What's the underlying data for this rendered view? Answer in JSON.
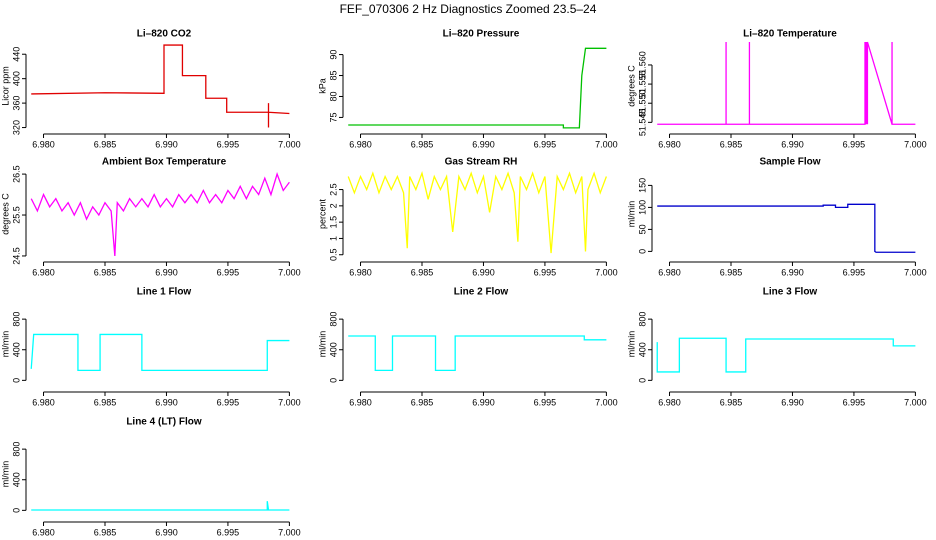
{
  "title": "FEF_070306  2 Hz Diagnostics Zoomed 23.5–24",
  "chart_data": [
    {
      "type": "line",
      "title": "Li–820 CO2",
      "ylabel": "Licor ppm",
      "color": "#e00000",
      "xlim": [
        6.9789,
        7.0007
      ],
      "xticks": [
        {
          "value": 6.98,
          "label": "6.980"
        },
        6.985,
        {
          "value": 6.99,
          "label": "6.990"
        },
        6.995,
        {
          "value": 7,
          "label": "7.000"
        }
      ],
      "ylim": [
        316,
        460
      ],
      "yticks": [
        320,
        360,
        400,
        440
      ],
      "x": [
        6.979,
        6.985,
        6.9898,
        6.9898,
        6.9913,
        6.9913,
        6.9932,
        6.9932,
        6.9949,
        6.9949,
        6.9983,
        6.9983,
        6.9983,
        6.9983,
        7.0
      ],
      "values": [
        375,
        377,
        376,
        455,
        455,
        405,
        405,
        368,
        368,
        345,
        345,
        320,
        360,
        345,
        343
      ]
    },
    {
      "type": "line",
      "title": "Li–820 Pressure",
      "ylabel": "kPa",
      "color": "#00c000",
      "xlim": [
        6.9789,
        7.0007
      ],
      "xticks": [
        {
          "value": 6.98,
          "label": "6.980"
        },
        6.985,
        {
          "value": 6.99,
          "label": "6.990"
        },
        6.995,
        {
          "value": 7,
          "label": "7.000"
        }
      ],
      "ylim": [
        72,
        93
      ],
      "yticks": [
        75,
        80,
        85,
        90
      ],
      "x": [
        6.979,
        6.9965,
        6.9965,
        6.9978,
        6.998,
        6.9983,
        7.0
      ],
      "values": [
        73.2,
        73.2,
        72.5,
        72.5,
        85,
        91.5,
        91.5
      ]
    },
    {
      "type": "line",
      "title": "Li–820 Temperature",
      "ylabel": "degrees C",
      "color": "#ff00ff",
      "xlim": [
        6.9789,
        7.0007
      ],
      "xticks": [
        {
          "value": 6.98,
          "label": "6.980"
        },
        6.985,
        {
          "value": 6.99,
          "label": "6.990"
        },
        6.995,
        {
          "value": 7,
          "label": "7.000"
        }
      ],
      "ylim": [
        51.543,
        51.566
      ],
      "yticks": [
        51.545,
        {
          "value": 51.55,
          "label": "51.550"
        },
        51.555,
        {
          "value": 51.56,
          "label": "51.560"
        }
      ],
      "x": [
        6.979,
        6.9846,
        6.9846,
        6.9846,
        6.9865,
        6.9865,
        6.9865,
        6.9959,
        6.9959,
        6.996,
        6.996,
        6.9961,
        6.9961,
        6.9981,
        6.9981,
        6.9981,
        7.0
      ],
      "values": [
        51.5445,
        51.5445,
        51.566,
        51.5445,
        51.5445,
        51.566,
        51.5445,
        51.5445,
        51.566,
        51.5445,
        51.566,
        51.5445,
        51.566,
        51.5445,
        51.566,
        51.5445,
        51.5445
      ]
    },
    {
      "type": "line",
      "title": "Ambient Box Temperature",
      "ylabel": "degrees C",
      "color": "#ff00ff",
      "xlim": [
        6.9789,
        7.0007
      ],
      "xticks": [
        {
          "value": 6.98,
          "label": "6.980"
        },
        6.985,
        {
          "value": 6.99,
          "label": "6.990"
        },
        6.995,
        {
          "value": 7,
          "label": "7.000"
        }
      ],
      "ylim": [
        24.45,
        26.6
      ],
      "yticks": [
        24.5,
        25.5,
        26.5
      ],
      "x": [
        6.979,
        6.9795,
        6.98,
        6.9805,
        6.981,
        6.9815,
        6.982,
        6.9825,
        6.983,
        6.9835,
        6.984,
        6.9845,
        6.985,
        6.9855,
        6.9858,
        6.986,
        6.9865,
        6.987,
        6.9875,
        6.988,
        6.9885,
        6.989,
        6.9895,
        6.99,
        6.9905,
        6.991,
        6.9915,
        6.992,
        6.9925,
        6.993,
        6.9935,
        6.994,
        6.9945,
        6.995,
        6.9955,
        6.996,
        6.9965,
        6.997,
        6.9975,
        6.998,
        6.9985,
        6.999,
        6.9995,
        7.0
      ],
      "values": [
        25.9,
        25.6,
        26.0,
        25.7,
        25.9,
        25.6,
        25.8,
        25.5,
        25.8,
        25.4,
        25.7,
        25.5,
        25.8,
        25.6,
        24.5,
        25.8,
        25.6,
        25.9,
        25.7,
        25.9,
        25.7,
        26.0,
        25.7,
        25.9,
        25.7,
        26.0,
        25.8,
        26.0,
        25.8,
        26.1,
        25.8,
        26.0,
        25.8,
        26.1,
        25.9,
        26.2,
        25.9,
        26.2,
        26.0,
        26.4,
        26.0,
        26.5,
        26.1,
        26.3
      ]
    },
    {
      "type": "line",
      "title": "Gas Stream RH",
      "ylabel": "percent",
      "color": "#ffff00",
      "xlim": [
        6.9789,
        7.0007
      ],
      "xticks": [
        {
          "value": 6.98,
          "label": "6.980"
        },
        6.985,
        {
          "value": 6.99,
          "label": "6.990"
        },
        6.995,
        {
          "value": 7,
          "label": "7.000"
        }
      ],
      "ylim": [
        0.4,
        3.1
      ],
      "yticks": [
        0.5,
        1,
        1.5,
        2,
        2.5
      ],
      "x": [
        6.979,
        6.9795,
        6.98,
        6.9805,
        6.981,
        6.9815,
        6.982,
        6.9825,
        6.983,
        6.9835,
        6.9838,
        6.984,
        6.9845,
        6.985,
        6.9855,
        6.986,
        6.9865,
        6.987,
        6.9875,
        6.988,
        6.9885,
        6.989,
        6.9895,
        6.99,
        6.9905,
        6.991,
        6.9915,
        6.992,
        6.9925,
        6.9928,
        6.993,
        6.9935,
        6.994,
        6.9945,
        6.995,
        6.9955,
        6.996,
        6.9965,
        6.997,
        6.9975,
        6.998,
        6.9983,
        6.9985,
        6.999,
        6.9995,
        7.0
      ],
      "values": [
        2.9,
        2.4,
        2.9,
        2.5,
        3.0,
        2.4,
        2.9,
        2.5,
        2.9,
        2.4,
        0.7,
        2.9,
        2.5,
        3.0,
        2.2,
        2.9,
        2.5,
        2.9,
        1.2,
        2.9,
        2.5,
        3.0,
        2.4,
        2.9,
        1.8,
        2.9,
        2.5,
        3.0,
        2.4,
        0.9,
        2.9,
        2.5,
        3.0,
        2.4,
        2.9,
        0.55,
        2.9,
        2.5,
        3.0,
        2.4,
        2.9,
        0.6,
        2.5,
        3.0,
        2.4,
        2.9
      ]
    },
    {
      "type": "line",
      "title": "Sample Flow",
      "ylabel": "ml/min",
      "color": "#0000cc",
      "xlim": [
        6.9789,
        7.0007
      ],
      "xticks": [
        {
          "value": 6.98,
          "label": "6.980"
        },
        6.985,
        {
          "value": 6.99,
          "label": "6.990"
        },
        6.995,
        {
          "value": 7,
          "label": "7.000"
        }
      ],
      "ylim": [
        -15,
        185
      ],
      "yticks": [
        0,
        50,
        100,
        150
      ],
      "x": [
        6.979,
        6.9925,
        6.9925,
        6.9935,
        6.9935,
        6.9945,
        6.9945,
        6.9967,
        6.9967,
        6.9968,
        7.0
      ],
      "values": [
        103,
        103,
        105,
        105,
        100,
        100,
        107,
        107,
        0,
        -2,
        -2
      ]
    },
    {
      "type": "line",
      "title": "Line 1 Flow",
      "ylabel": "ml/min",
      "color": "#00ffff",
      "xlim": [
        6.9789,
        7.0007
      ],
      "xticks": [
        {
          "value": 6.98,
          "label": "6.980"
        },
        6.985,
        {
          "value": 6.99,
          "label": "6.990"
        },
        6.995,
        {
          "value": 7,
          "label": "7.000"
        }
      ],
      "ylim": [
        -100,
        1050
      ],
      "yticks": [
        0,
        400,
        800
      ],
      "x": [
        6.979,
        6.9792,
        6.9828,
        6.9828,
        6.9846,
        6.9846,
        6.988,
        6.988,
        6.9982,
        6.9982,
        7.0
      ],
      "values": [
        150,
        600,
        600,
        130,
        130,
        600,
        600,
        130,
        130,
        520,
        520
      ]
    },
    {
      "type": "line",
      "title": "Line 2 Flow",
      "ylabel": "ml/min",
      "color": "#00ffff",
      "xlim": [
        6.9789,
        7.0007
      ],
      "xticks": [
        {
          "value": 6.98,
          "label": "6.980"
        },
        6.985,
        {
          "value": 6.99,
          "label": "6.990"
        },
        6.995,
        {
          "value": 7,
          "label": "7.000"
        }
      ],
      "ylim": [
        -100,
        1050
      ],
      "yticks": [
        0,
        400,
        800
      ],
      "x": [
        6.979,
        6.9812,
        6.9812,
        6.9826,
        6.9826,
        6.9861,
        6.9861,
        6.9877,
        6.9877,
        6.9982,
        6.9982,
        7.0
      ],
      "values": [
        580,
        580,
        130,
        130,
        580,
        580,
        130,
        130,
        580,
        580,
        530,
        530
      ]
    },
    {
      "type": "line",
      "title": "Line 3 Flow",
      "ylabel": "ml/min",
      "color": "#00ffff",
      "xlim": [
        6.9789,
        7.0007
      ],
      "xticks": [
        {
          "value": 6.98,
          "label": "6.980"
        },
        6.985,
        {
          "value": 6.99,
          "label": "6.990"
        },
        6.995,
        {
          "value": 7,
          "label": "7.000"
        }
      ],
      "ylim": [
        -100,
        1050
      ],
      "yticks": [
        0,
        400,
        800
      ],
      "x": [
        6.979,
        6.979,
        6.9808,
        6.9808,
        6.9846,
        6.9846,
        6.9862,
        6.9862,
        6.9982,
        6.9982,
        7.0
      ],
      "values": [
        500,
        110,
        110,
        550,
        550,
        110,
        110,
        540,
        540,
        450,
        450
      ]
    },
    {
      "type": "line",
      "title": "Line 4 (LT) Flow",
      "ylabel": "ml/min",
      "color": "#00ffff",
      "xlim": [
        6.9789,
        7.0007
      ],
      "xticks": [
        {
          "value": 6.98,
          "label": "6.980"
        },
        6.985,
        {
          "value": 6.99,
          "label": "6.990"
        },
        6.995,
        {
          "value": 7,
          "label": "7.000"
        }
      ],
      "ylim": [
        -100,
        1050
      ],
      "yticks": [
        0,
        400,
        800
      ],
      "x": [
        6.979,
        6.9982,
        6.9982,
        6.9983,
        7.0
      ],
      "values": [
        5,
        5,
        120,
        5,
        5
      ]
    }
  ]
}
